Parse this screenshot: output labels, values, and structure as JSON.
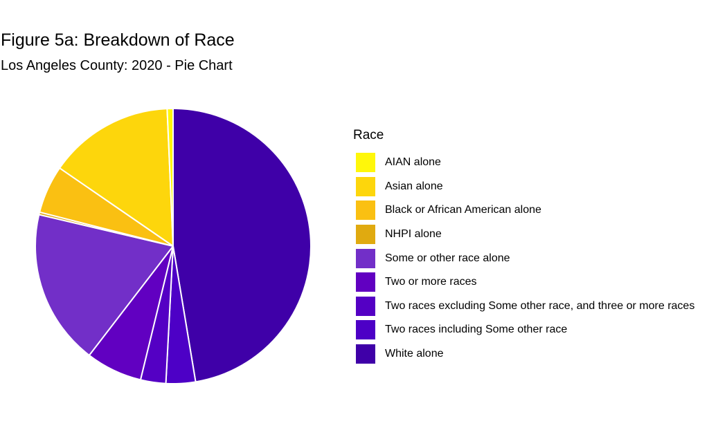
{
  "chart_data": {
    "type": "pie",
    "title": "Figure 5a: Breakdown of Race",
    "subtitle": "Los Angeles County: 2020 - Pie Chart",
    "legend_title": "Race",
    "legend_position": "right",
    "slices": [
      {
        "name": "White alone",
        "value": 48.0,
        "color": "#3f00a8"
      },
      {
        "name": "Two races including Some other race",
        "value": 3.5,
        "color": "#4d00c6"
      },
      {
        "name": "Two races excluding Some other race, and three or more races",
        "value": 3.0,
        "color": "#5400c4"
      },
      {
        "name": "Two or more races",
        "value": 6.7,
        "color": "#6100c1"
      },
      {
        "name": "Some or other race alone",
        "value": 18.5,
        "color": "#722fc8"
      },
      {
        "name": "NHPI alone",
        "value": 0.3,
        "color": "#e0aa10"
      },
      {
        "name": "Black or African American alone",
        "value": 5.7,
        "color": "#fac012"
      },
      {
        "name": "Asian alone",
        "value": 14.9,
        "color": "#fdd60c"
      },
      {
        "name": "AIAN alone",
        "value": 0.7,
        "color": "#fff70a"
      }
    ],
    "legend_order": [
      "AIAN alone",
      "Asian alone",
      "Black or African American alone",
      "NHPI alone",
      "Some or other race alone",
      "Two or more races",
      "Two races excluding Some other race, and three or more races",
      "Two races including Some other race",
      "White alone"
    ]
  }
}
